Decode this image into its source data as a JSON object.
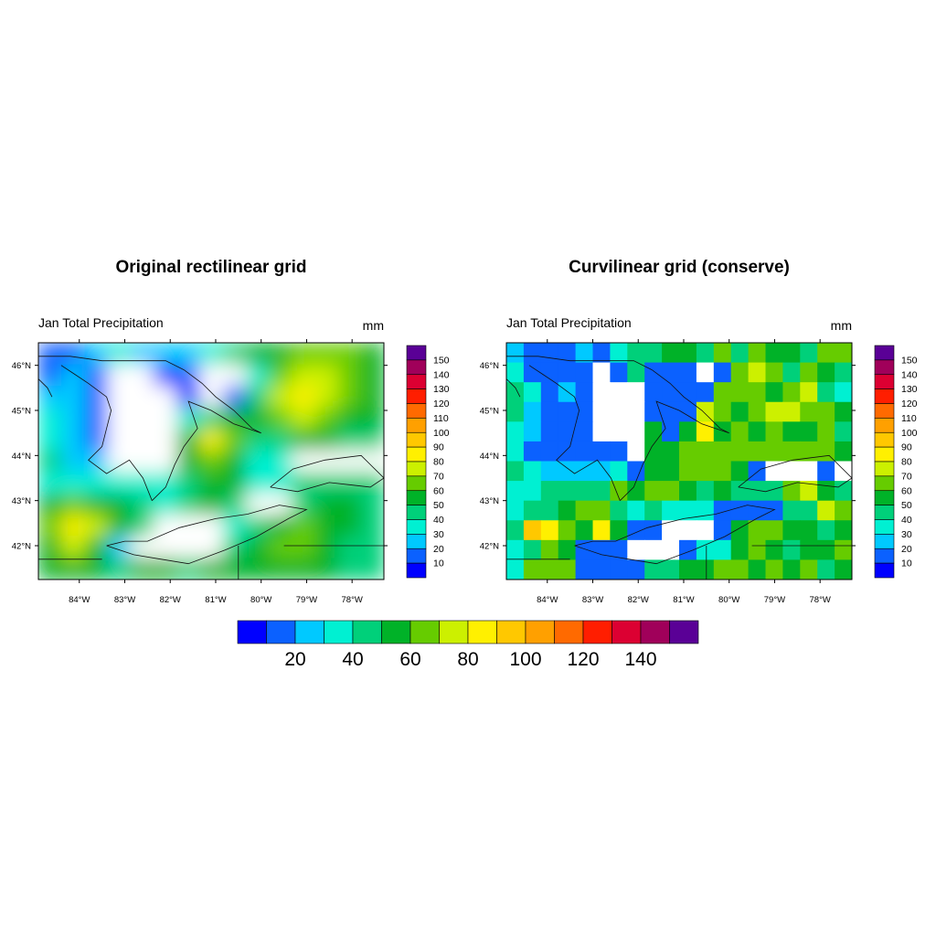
{
  "chart_data": {
    "type": "heatmap",
    "units": "mm",
    "colorbar_levels": [
      10,
      20,
      30,
      40,
      50,
      60,
      70,
      80,
      90,
      100,
      110,
      120,
      130,
      140,
      150
    ],
    "colorbar_colors": [
      "#0000ff",
      "#0b61ff",
      "#00c9ff",
      "#00f0d2",
      "#00d07a",
      "#00b228",
      "#66cc00",
      "#ccf000",
      "#fff000",
      "#ffc800",
      "#ffa000",
      "#ff6a00",
      "#ff1e00",
      "#dc0032",
      "#a0005a",
      "#5a0096"
    ],
    "horizontal_colorbar_ticks": [
      "20",
      "40",
      "60",
      "80",
      "100",
      "120",
      "140"
    ],
    "lon_ticks": [
      "84°W",
      "83°W",
      "82°W",
      "81°W",
      "80°W",
      "79°W",
      "78°W"
    ],
    "lat_ticks": [
      "46°N",
      "45°N",
      "44°N",
      "43°N",
      "42°N"
    ],
    "panels": [
      {
        "title": "Original rectilinear grid",
        "left_string": "Jan Total Precipitation",
        "right_string": "mm",
        "lon_range": [
          -84.9,
          -77.3
        ],
        "lat_range": [
          41.25,
          46.5
        ],
        "fill_style": "smooth contour",
        "grid": [
          [
            10,
            15,
            25,
            35,
            28,
            22,
            25,
            35,
            45,
            55,
            55,
            60,
            65,
            60,
            55
          ],
          [
            15,
            25,
            10,
            -1,
            -1,
            5,
            10,
            -1,
            -1,
            35,
            65,
            75,
            70,
            60,
            55
          ],
          [
            25,
            20,
            10,
            -1,
            -1,
            -1,
            5,
            -1,
            10,
            45,
            70,
            80,
            70,
            60,
            55
          ],
          [
            35,
            20,
            10,
            -1,
            -1,
            -1,
            30,
            45,
            55,
            55,
            65,
            70,
            65,
            55,
            50
          ],
          [
            35,
            25,
            10,
            -1,
            -1,
            -1,
            50,
            80,
            60,
            45,
            45,
            55,
            50,
            45,
            40
          ],
          [
            40,
            25,
            20,
            -1,
            -1,
            -1,
            50,
            60,
            55,
            35,
            30,
            -1,
            -1,
            -1,
            -1
          ],
          [
            35,
            30,
            30,
            35,
            35,
            30,
            40,
            55,
            50,
            35,
            35,
            40,
            45,
            40,
            40
          ],
          [
            50,
            60,
            55,
            50,
            40,
            35,
            40,
            50,
            45,
            -1,
            -1,
            45,
            55,
            50,
            45
          ],
          [
            60,
            80,
            70,
            55,
            40,
            -1,
            -1,
            -1,
            30,
            40,
            55,
            60,
            50,
            50,
            40
          ],
          [
            55,
            70,
            50,
            25,
            -1,
            -1,
            -1,
            -1,
            40,
            50,
            60,
            60,
            55,
            45,
            40
          ],
          [
            50,
            55,
            50,
            45,
            50,
            50,
            45,
            50,
            50,
            50,
            55,
            55,
            50,
            45,
            40
          ]
        ]
      },
      {
        "title": "Curvilinear grid (conserve)",
        "left_string": "Jan Total Precipitation",
        "right_string": "mm",
        "lon_range": [
          -84.9,
          -77.3
        ],
        "lat_range": [
          41.25,
          46.5
        ],
        "fill_style": "cell raster",
        "grid": [
          [
            20,
            10,
            10,
            10,
            20,
            10,
            30,
            40,
            40,
            50,
            50,
            40,
            60,
            40,
            60,
            50,
            50,
            40,
            60,
            60
          ],
          [
            30,
            10,
            10,
            10,
            10,
            -1,
            10,
            40,
            10,
            10,
            10,
            -1,
            10,
            60,
            70,
            60,
            40,
            60,
            50,
            40
          ],
          [
            40,
            30,
            10,
            20,
            10,
            -1,
            -1,
            -1,
            10,
            10,
            10,
            10,
            60,
            60,
            60,
            50,
            60,
            70,
            40,
            30
          ],
          [
            40,
            20,
            10,
            10,
            10,
            -1,
            -1,
            -1,
            10,
            10,
            10,
            70,
            60,
            50,
            60,
            70,
            70,
            60,
            60,
            50
          ],
          [
            30,
            20,
            10,
            10,
            10,
            -1,
            -1,
            -1,
            50,
            10,
            50,
            80,
            50,
            60,
            50,
            60,
            50,
            50,
            60,
            40
          ],
          [
            30,
            10,
            10,
            10,
            10,
            10,
            10,
            -1,
            50,
            50,
            60,
            60,
            60,
            60,
            60,
            60,
            60,
            60,
            60,
            50
          ],
          [
            40,
            30,
            20,
            20,
            20,
            20,
            30,
            10,
            50,
            50,
            60,
            60,
            60,
            50,
            10,
            -1,
            -1,
            -1,
            10,
            -1
          ],
          [
            30,
            30,
            40,
            40,
            40,
            40,
            60,
            50,
            60,
            60,
            50,
            40,
            50,
            40,
            40,
            40,
            60,
            70,
            50,
            40
          ],
          [
            30,
            40,
            40,
            50,
            60,
            60,
            40,
            30,
            40,
            30,
            30,
            30,
            10,
            10,
            10,
            10,
            40,
            40,
            70,
            60
          ],
          [
            40,
            90,
            80,
            60,
            50,
            80,
            50,
            10,
            10,
            -1,
            -1,
            -1,
            10,
            50,
            60,
            60,
            50,
            50,
            40,
            50
          ],
          [
            30,
            40,
            60,
            50,
            10,
            10,
            10,
            -1,
            -1,
            -1,
            10,
            30,
            30,
            50,
            60,
            50,
            40,
            50,
            50,
            60
          ],
          [
            30,
            60,
            60,
            60,
            10,
            10,
            10,
            10,
            40,
            40,
            50,
            50,
            60,
            60,
            50,
            60,
            50,
            60,
            40,
            50
          ]
        ]
      }
    ]
  }
}
